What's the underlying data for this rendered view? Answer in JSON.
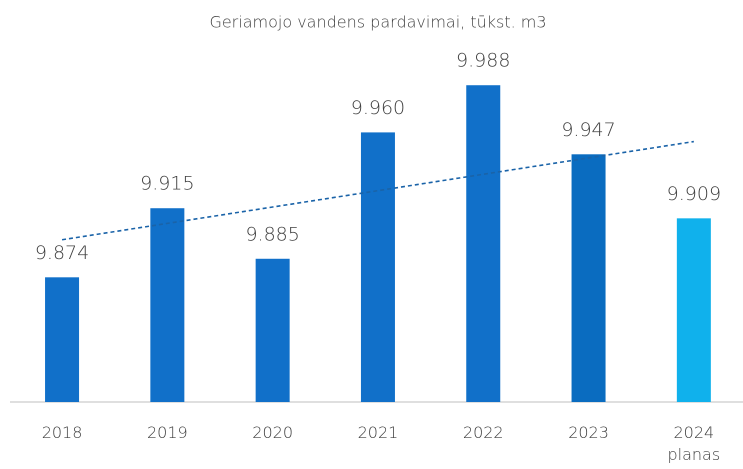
{
  "chart_data": {
    "type": "bar",
    "title": "Geriamojo vandens pardavimai, tūkst. m3",
    "categories": [
      "2018",
      "2019",
      "2020",
      "2021",
      "2022",
      "2023",
      "2024\nplanas"
    ],
    "values": [
      9.874,
      9.915,
      9.885,
      9.96,
      9.988,
      9.947,
      9.909
    ],
    "value_labels": [
      "9.874",
      "9.915",
      "9.885",
      "9.960",
      "9.988",
      "9.947",
      "9.909"
    ],
    "colors": [
      "#1170c9",
      "#1170c9",
      "#1170c9",
      "#1170c9",
      "#1170c9",
      "#0a6cc0",
      "#10b1ec"
    ],
    "ylim": [
      9.8,
      10.0
    ],
    "trendline": true,
    "trendline_color": "#1a63a8"
  }
}
